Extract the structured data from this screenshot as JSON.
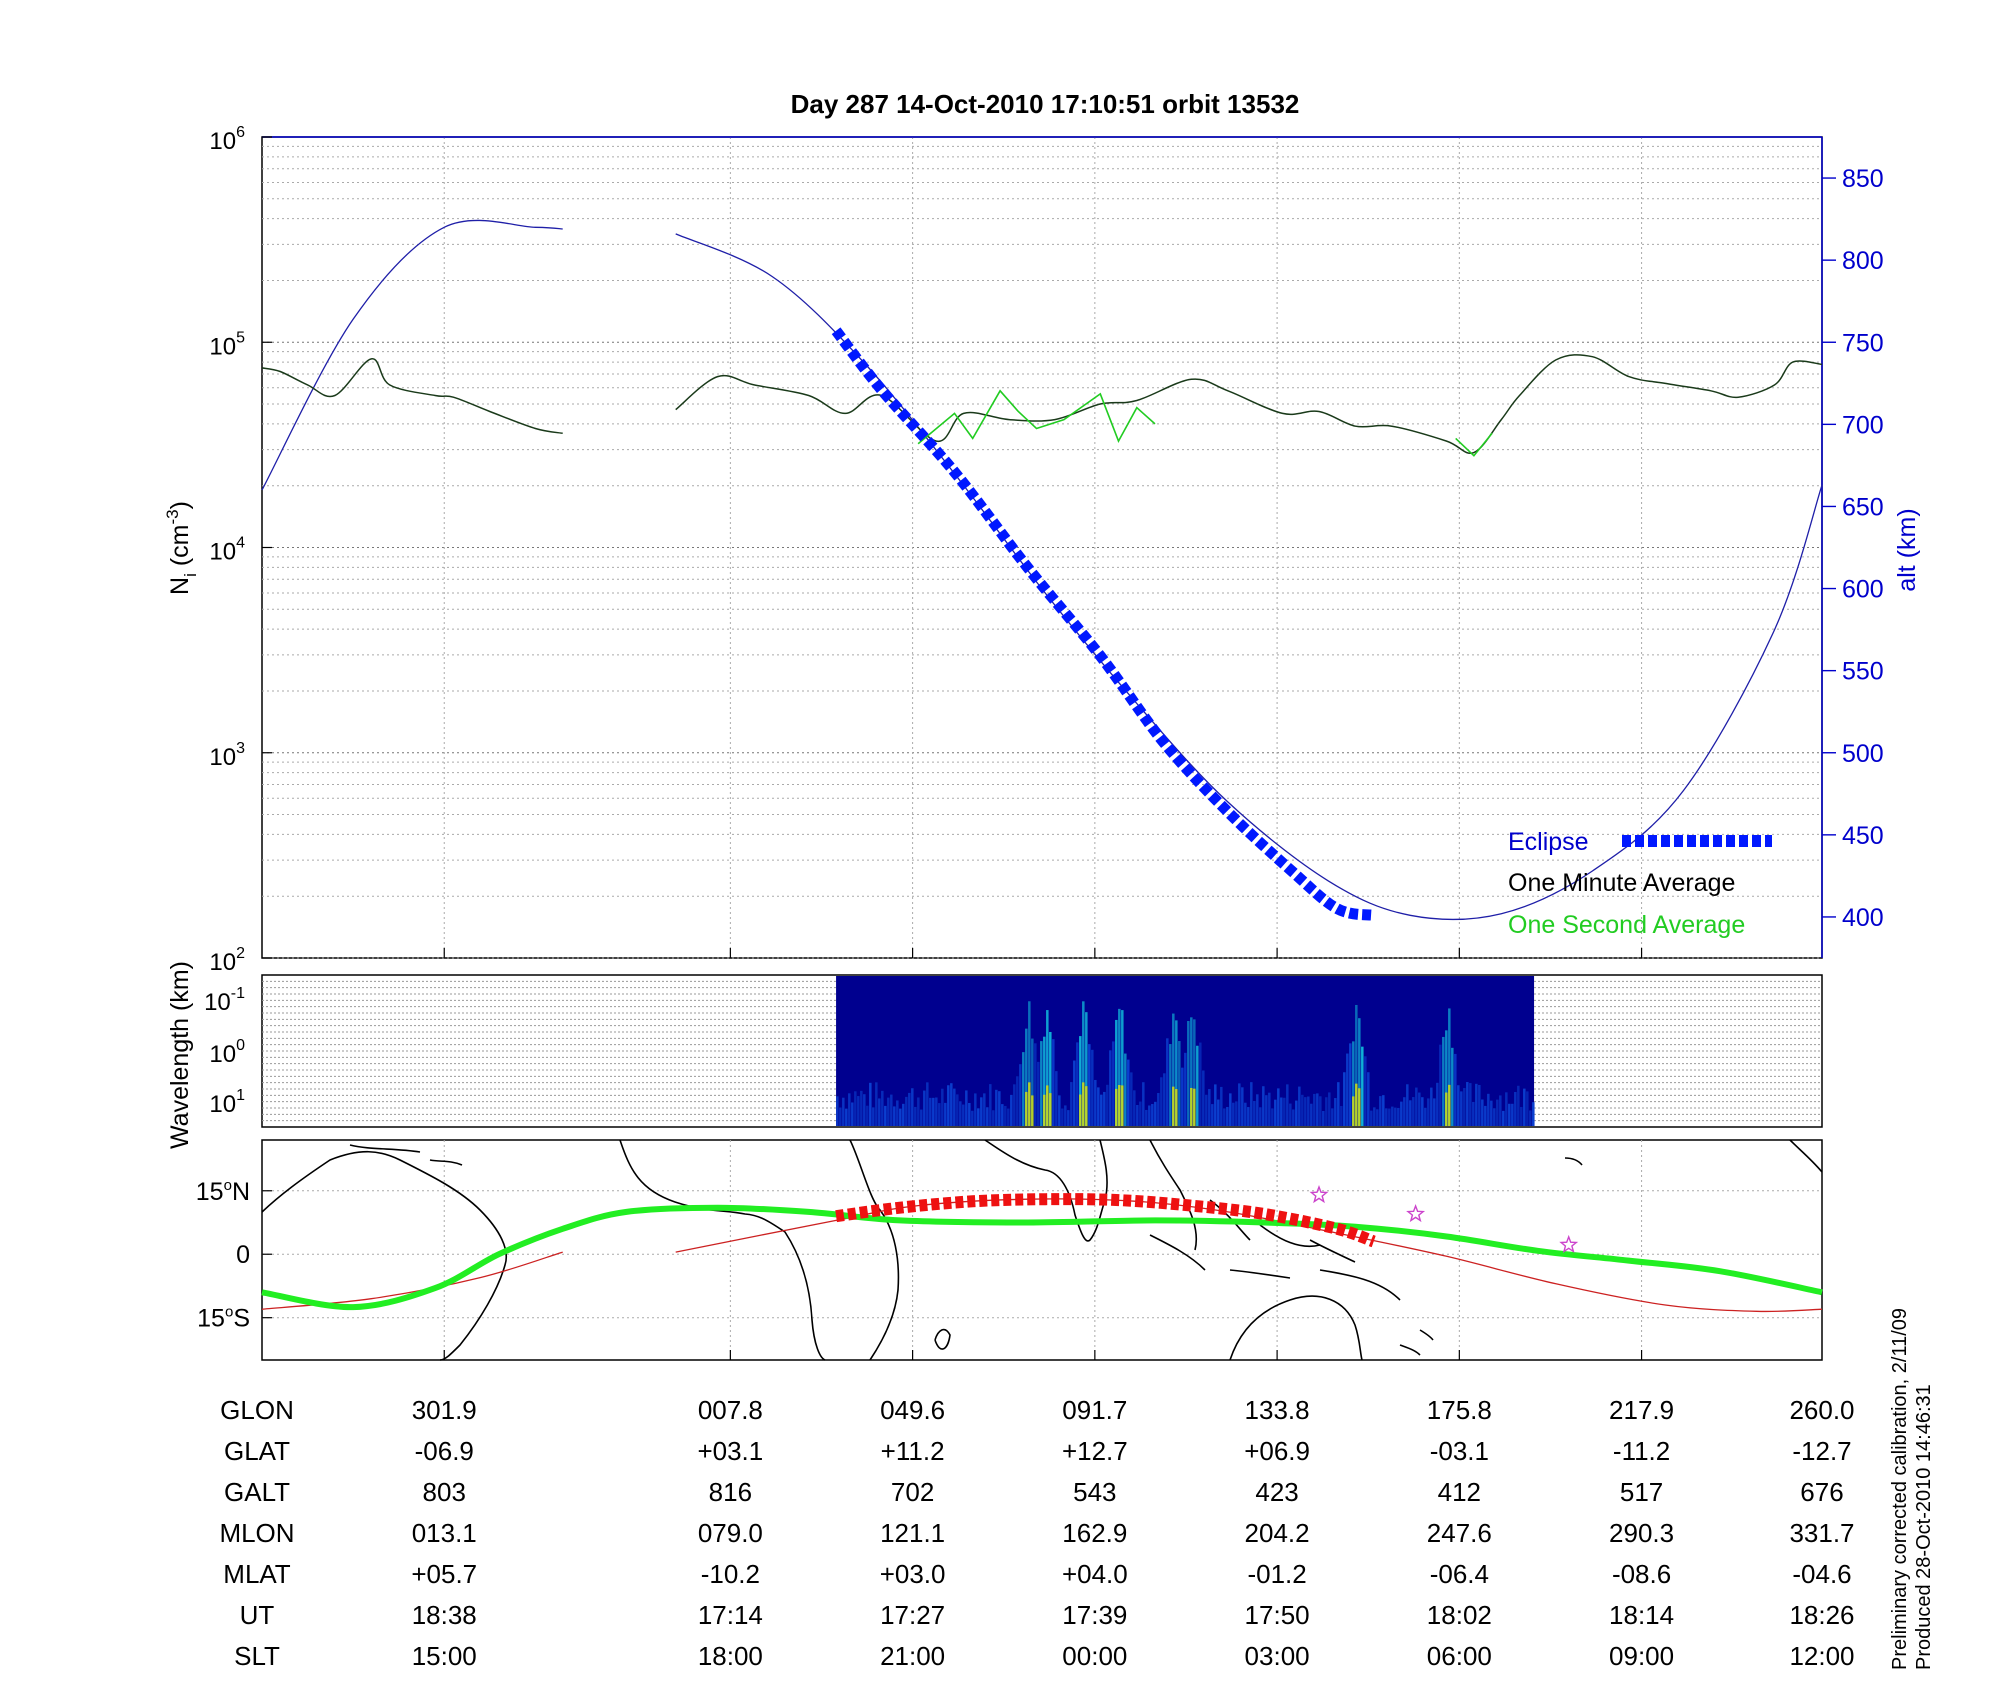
{
  "chart_data": [
    {
      "type": "line",
      "title": "Day 287  14-Oct-2010 17:10:51   orbit 13532",
      "ylabel_left": "N",
      "ylabel_left_sub": "i",
      "ylabel_left_unit_open": " (cm",
      "ylabel_left_unit_exp": "-3",
      "ylabel_left_unit_close": ")",
      "ylabel_right": "alt (km)",
      "y_scale_left": "log",
      "ylim_left": [
        100,
        1000000
      ],
      "y_ticks_left": [
        {
          "base": "10",
          "exp": "2"
        },
        {
          "base": "10",
          "exp": "3"
        },
        {
          "base": "10",
          "exp": "4"
        },
        {
          "base": "10",
          "exp": "5"
        },
        {
          "base": "10",
          "exp": "6"
        }
      ],
      "ylim_right": [
        375,
        875
      ],
      "y_ticks_right": [
        "400",
        "450",
        "500",
        "550",
        "600",
        "650",
        "700",
        "750",
        "800",
        "850"
      ],
      "xlim": [
        0,
        8.56
      ],
      "grid": true,
      "legend_position": "bottom-right",
      "legend": {
        "eclipse": "Eclipse",
        "minute": "One Minute Average",
        "second": "One Second Average"
      },
      "colors": {
        "altitude": "#1f1fa8",
        "eclipse": "#0018ff",
        "minute": "#1a3a1a",
        "second": "#22cc22",
        "axis_right": "#0000cc"
      },
      "series": [
        {
          "name": "alt",
          "axis": "right",
          "segments": [
            {
              "x": [
                0,
                0.5,
                1.0,
                1.5,
                1.65
              ],
              "y": [
                660,
                764,
                820,
                820,
                819
              ]
            },
            {
              "x": [
                2.27,
                2.8,
                3.3,
                3.8,
                4.3,
                4.8,
                5.3,
                5.85,
                6.3,
                6.8,
                7.3,
                7.8,
                8.3,
                8.56
              ],
              "y": [
                816,
                790,
                738,
                670,
                597,
                530,
                470,
                422,
                401,
                402,
                428,
                477,
                575,
                663
              ]
            }
          ]
        },
        {
          "name": "Eclipse",
          "axis": "right",
          "x": [
            3.15,
            3.4,
            3.8,
            4.2,
            4.6,
            4.95,
            5.3,
            5.65,
            5.9,
            6.1
          ],
          "y": [
            757,
            721,
            671,
            613,
            559,
            506,
            464,
            428,
            405,
            401
          ]
        },
        {
          "name": "One Minute Average",
          "axis": "left",
          "segments": [
            {
              "x": [
                0,
                0.1,
                0.25,
                0.4,
                0.6,
                0.7,
                0.95,
                1.05,
                1.25,
                1.5,
                1.65
              ],
              "y": [
                75000,
                72000,
                62000,
                55000,
                83000,
                62000,
                55000,
                54000,
                46000,
                38000,
                36000
              ]
            },
            {
              "x": [
                2.27,
                2.5,
                2.7,
                3.0,
                3.2,
                3.4,
                3.7,
                3.85,
                4.1,
                4.35,
                4.6,
                4.8,
                5.1,
                5.3,
                5.6,
                5.8,
                6.0,
                6.2,
                6.5,
                6.65,
                6.8,
                6.9,
                7.1,
                7.3,
                7.5,
                7.7,
                7.95,
                8.1,
                8.3,
                8.4,
                8.56
              ],
              "y": [
                47000,
                68000,
                62000,
                55000,
                45000,
                55000,
                33000,
                45000,
                42000,
                42000,
                50000,
                52000,
                66000,
                58000,
                45000,
                46000,
                39000,
                39000,
                33000,
                29000,
                42000,
                55000,
                82000,
                85000,
                68000,
                63000,
                58000,
                54000,
                62000,
                80000,
                78000
              ]
            }
          ]
        },
        {
          "name": "One Second Average",
          "axis": "left",
          "segments": [
            {
              "x": [
                3.6,
                3.8,
                3.9,
                4.05,
                4.15,
                4.25,
                4.4,
                4.6,
                4.7,
                4.8,
                4.9
              ],
              "y": [
                32000,
                45000,
                34000,
                58000,
                46000,
                38000,
                42000,
                56000,
                33000,
                48000,
                40000
              ]
            },
            {
              "x": [
                6.55,
                6.65,
                6.75
              ],
              "y": [
                34000,
                28000,
                36000
              ]
            }
          ]
        }
      ]
    },
    {
      "type": "heatmap",
      "ylabel": "Wavelength (km)",
      "y_scale": "log",
      "y_ticks": [
        {
          "base": "10",
          "exp": "-1"
        },
        {
          "base": "10",
          "exp": "0"
        },
        {
          "base": "10",
          "exp": "1"
        }
      ],
      "x_range_with_data": [
        3.15,
        6.98
      ],
      "colors": {
        "background": "#00008f",
        "low": "#0b40d0",
        "mid": "#10b4d8",
        "high": "#d2e010"
      },
      "bright_columns": [
        4.2,
        4.3,
        4.5,
        4.7,
        5.0,
        5.1,
        6.0,
        6.5
      ]
    },
    {
      "type": "map",
      "y_ticks": [
        {
          "value": "15",
          "hemi": "N"
        },
        {
          "value": "0",
          "hemi": ""
        },
        {
          "value": "15",
          "hemi": "S"
        }
      ],
      "ylim": [
        -25,
        27
      ],
      "colors": {
        "track": "#22ee22",
        "magnetic_equator": "#cc2222",
        "eclipse": "#ee1111",
        "stars": "#cc44cc"
      },
      "track": {
        "x": [
          0,
          0.5,
          0.95,
          1.3,
          1.65,
          2.0,
          2.5,
          3.0,
          3.5,
          4.2,
          4.9,
          5.5,
          6.0,
          6.5,
          7.0,
          7.5,
          8.0,
          8.56
        ],
        "y": [
          -9,
          -12.5,
          -8,
          0,
          6,
          10,
          11,
          10,
          8,
          7.5,
          8,
          7.5,
          6.5,
          4.2,
          0.8,
          -1.5,
          -4,
          -9
        ]
      },
      "magnetic_equator": {
        "segments": [
          {
            "x": [
              0,
              0.6,
              1.2,
              1.65
            ],
            "y": [
              -13,
              -10.5,
              -5.5,
              0.5
            ]
          },
          {
            "x": [
              2.27,
              3.15,
              3.6,
              4.2,
              4.8,
              5.3,
              5.9,
              6.5,
              7.1,
              7.7,
              8.2,
              8.56
            ],
            "y": [
              0.5,
              8,
              11.5,
              13,
              12.5,
              10,
              5,
              -0.5,
              -7,
              -12,
              -13.5,
              -13
            ]
          }
        ]
      },
      "eclipse_track": {
        "x": [
          3.15,
          3.5,
          3.9,
          4.3,
          4.7,
          5.1,
          5.5,
          5.9,
          6.1
        ],
        "y": [
          9,
          11,
          12.5,
          13,
          12.8,
          11.5,
          9.5,
          6,
          3
        ]
      },
      "stars": [
        {
          "x": 5.8,
          "y": 14
        },
        {
          "x": 6.33,
          "y": 9.5
        },
        {
          "x": 7.17,
          "y": 2.2
        }
      ]
    }
  ],
  "table": {
    "rows": [
      {
        "label": "GLON",
        "values": [
          "301.9",
          "007.8",
          "049.6",
          "091.7",
          "133.8",
          "175.8",
          "217.9",
          "260.0"
        ]
      },
      {
        "label": "GLAT",
        "values": [
          "-06.9",
          "+03.1",
          "+11.2",
          "+12.7",
          "+06.9",
          "-03.1",
          "-11.2",
          "-12.7"
        ]
      },
      {
        "label": "GALT",
        "values": [
          "803",
          "816",
          "702",
          "543",
          "423",
          "412",
          "517",
          "676"
        ]
      },
      {
        "label": "MLON",
        "values": [
          "013.1",
          "079.0",
          "121.1",
          "162.9",
          "204.2",
          "247.6",
          "290.3",
          "331.7"
        ]
      },
      {
        "label": "MLAT",
        "values": [
          "+05.7",
          "-10.2",
          "+03.0",
          "+04.0",
          "-01.2",
          "-06.4",
          "-08.6",
          "-04.6"
        ]
      },
      {
        "label": "UT",
        "values": [
          "18:38",
          "17:14",
          "17:27",
          "17:39",
          "17:50",
          "18:02",
          "18:14",
          "18:26"
        ]
      },
      {
        "label": "SLT",
        "values": [
          "15:00",
          "18:00",
          "21:00",
          "00:00",
          "03:00",
          "06:00",
          "09:00",
          "12:00"
        ]
      }
    ]
  },
  "footer": {
    "line1": "Preliminary corrected calibration, 2/11/09",
    "line2": "Produced 28-Oct-2010 14:46:31"
  }
}
